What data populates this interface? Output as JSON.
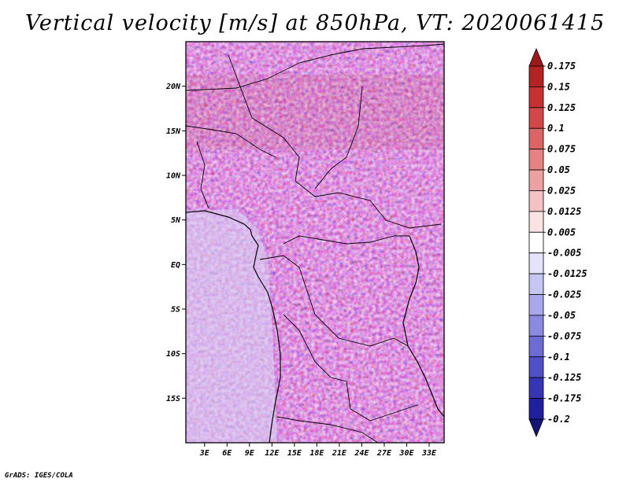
{
  "chart_data": {
    "type": "heatmap",
    "title": "Vertical velocity [m/s] at 850hPa, VT: 2020061415",
    "variable": "Vertical velocity",
    "units": "m/s",
    "level": "850hPa",
    "valid_time": "2020061415",
    "x_ticks": [
      "3E",
      "6E",
      "9E",
      "12E",
      "15E",
      "18E",
      "21E",
      "24E",
      "27E",
      "30E",
      "33E"
    ],
    "x_tick_values": [
      3,
      6,
      9,
      12,
      15,
      18,
      21,
      24,
      27,
      30,
      33
    ],
    "y_ticks": [
      "20N",
      "15N",
      "10N",
      "5N",
      "EQ",
      "5S",
      "10S",
      "15S"
    ],
    "y_tick_values": [
      20,
      15,
      10,
      5,
      0,
      -5,
      -10,
      -15
    ],
    "xlim": [
      0.5,
      35
    ],
    "ylim": [
      -20,
      25
    ],
    "colorbar": {
      "levels": [
        "0.175",
        "0.15",
        "0.125",
        "0.1",
        "0.075",
        "0.05",
        "0.025",
        "0.0125",
        "0.005",
        "-0.005",
        "-0.0125",
        "-0.025",
        "-0.05",
        "-0.075",
        "-0.1",
        "-0.125",
        "-0.175",
        "-0.2"
      ],
      "colors": [
        "#9e1a1a",
        "#b42323",
        "#c63232",
        "#d24848",
        "#dc6464",
        "#e58282",
        "#eda0a0",
        "#f4c2c2",
        "#fae3e3",
        "#ffffff",
        "#e3e3fa",
        "#c6c6f2",
        "#a8a8eb",
        "#8a8ae0",
        "#6c6cd4",
        "#5050c8",
        "#3636b4",
        "#20209e",
        "#141478"
      ]
    }
  },
  "credit": "GrADS: IGES/COLA"
}
